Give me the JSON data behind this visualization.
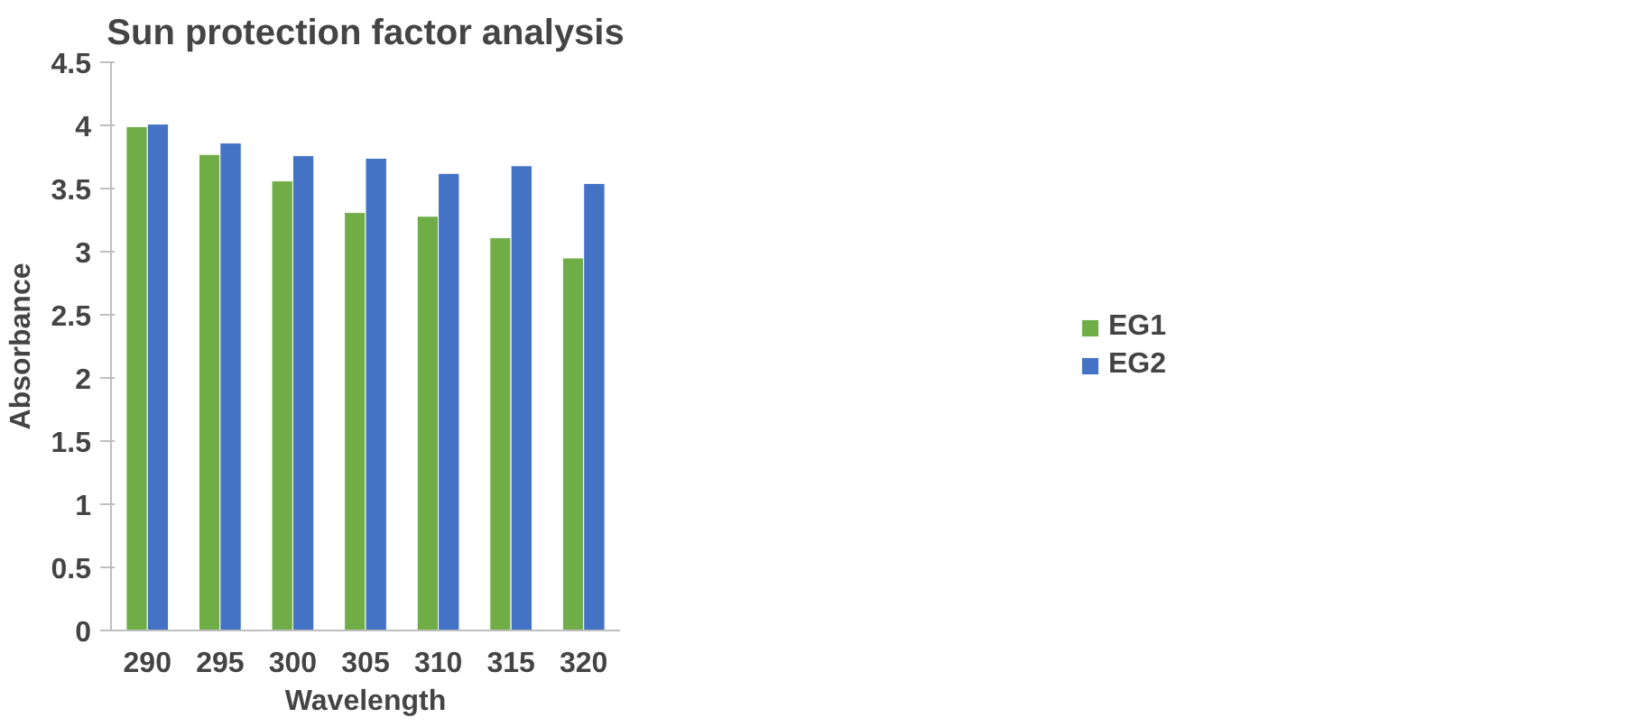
{
  "chart_data": {
    "type": "bar",
    "title": "Sun protection factor analysis",
    "xlabel": "Wavelength",
    "ylabel": "Absorbance",
    "categories": [
      "290",
      "295",
      "300",
      "305",
      "310",
      "315",
      "320"
    ],
    "series": [
      {
        "name": "EG1",
        "color": "#70ad47",
        "values": [
          3.99,
          3.77,
          3.56,
          3.31,
          3.28,
          3.11,
          2.95
        ]
      },
      {
        "name": "EG2",
        "color": "#4472c4",
        "values": [
          4.01,
          3.86,
          3.76,
          3.74,
          3.62,
          3.68,
          3.54
        ]
      }
    ],
    "ylim": [
      0,
      4.5
    ],
    "yticks": [
      0,
      0.5,
      1,
      1.5,
      2,
      2.5,
      3,
      3.5,
      4,
      4.5
    ],
    "grid": false,
    "legend": "right"
  }
}
